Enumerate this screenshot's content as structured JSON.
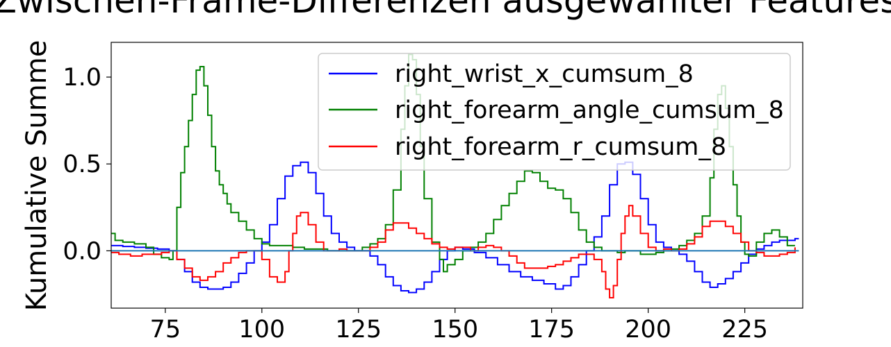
{
  "chart_data": {
    "type": "line",
    "drawstyle": "steps",
    "title": "Zwischen-Frame-Differenzen ausgewählter Features",
    "xlabel": "",
    "ylabel": "Kumulative Summe",
    "xlim": [
      61,
      240
    ],
    "ylim": [
      -0.33,
      1.2
    ],
    "x_ticks": [
      75,
      100,
      125,
      150,
      175,
      200,
      225
    ],
    "y_ticks": [
      0.0,
      0.5,
      1.0
    ],
    "x_tick_labels": [
      "75",
      "100",
      "125",
      "150",
      "175",
      "200",
      "225"
    ],
    "y_tick_labels": [
      "0.0",
      "0.5",
      "1.0"
    ],
    "grid": false,
    "legend_position": "top-right",
    "baseline": {
      "y": 0.0,
      "color": "#1f77b4"
    },
    "series": [
      {
        "name": "right_wrist_x_cumsum_8",
        "color": "#0000ff",
        "points": [
          [
            61,
            0.03
          ],
          [
            64,
            0.025
          ],
          [
            67,
            0.02
          ],
          [
            70,
            0.015
          ],
          [
            73,
            0.01
          ],
          [
            76,
            0.0
          ],
          [
            78,
            -0.05
          ],
          [
            80,
            -0.12
          ],
          [
            82,
            -0.18
          ],
          [
            84,
            -0.21
          ],
          [
            86,
            -0.22
          ],
          [
            88,
            -0.22
          ],
          [
            90,
            -0.21
          ],
          [
            92,
            -0.18
          ],
          [
            94,
            -0.13
          ],
          [
            96,
            -0.07
          ],
          [
            98,
            0.0
          ],
          [
            100,
            0.05
          ],
          [
            102,
            0.15
          ],
          [
            104,
            0.3
          ],
          [
            106,
            0.43
          ],
          [
            108,
            0.49
          ],
          [
            110,
            0.51
          ],
          [
            112,
            0.45
          ],
          [
            114,
            0.33
          ],
          [
            116,
            0.2
          ],
          [
            118,
            0.1
          ],
          [
            120,
            0.05
          ],
          [
            122,
            0.02
          ],
          [
            124,
            0.0
          ],
          [
            126,
            0.0
          ],
          [
            128,
            -0.03
          ],
          [
            130,
            -0.08
          ],
          [
            132,
            -0.15
          ],
          [
            134,
            -0.2
          ],
          [
            136,
            -0.23
          ],
          [
            138,
            -0.24
          ],
          [
            140,
            -0.22
          ],
          [
            142,
            -0.18
          ],
          [
            144,
            -0.12
          ],
          [
            146,
            -0.05
          ],
          [
            148,
            0.0
          ],
          [
            150,
            0.02
          ],
          [
            152,
            0.01
          ],
          [
            155,
            -0.01
          ],
          [
            158,
            -0.04
          ],
          [
            161,
            -0.08
          ],
          [
            164,
            -0.12
          ],
          [
            167,
            -0.15
          ],
          [
            170,
            -0.17
          ],
          [
            173,
            -0.19
          ],
          [
            176,
            -0.22
          ],
          [
            178,
            -0.2
          ],
          [
            180,
            -0.15
          ],
          [
            182,
            -0.08
          ],
          [
            184,
            0.0
          ],
          [
            186,
            0.08
          ],
          [
            188,
            0.2
          ],
          [
            190,
            0.38
          ],
          [
            192,
            0.5
          ],
          [
            194,
            0.51
          ],
          [
            196,
            0.44
          ],
          [
            198,
            0.3
          ],
          [
            200,
            0.15
          ],
          [
            202,
            0.05
          ],
          [
            204,
            0.02
          ],
          [
            206,
            0.0
          ],
          [
            208,
            -0.02
          ],
          [
            210,
            -0.06
          ],
          [
            212,
            -0.12
          ],
          [
            214,
            -0.18
          ],
          [
            216,
            -0.21
          ],
          [
            218,
            -0.19
          ],
          [
            220,
            -0.16
          ],
          [
            222,
            -0.12
          ],
          [
            224,
            -0.07
          ],
          [
            226,
            -0.02
          ],
          [
            228,
            0.01
          ],
          [
            230,
            0.03
          ],
          [
            232,
            0.05
          ],
          [
            234,
            0.06
          ],
          [
            236,
            0.06
          ],
          [
            238,
            0.07
          ],
          [
            239,
            0.07
          ]
        ]
      },
      {
        "name": "right_forearm_angle_cumsum_8",
        "color": "#008000",
        "points": [
          [
            61,
            0.1
          ],
          [
            62,
            0.06
          ],
          [
            64,
            0.05
          ],
          [
            67,
            0.04
          ],
          [
            70,
            0.02
          ],
          [
            72,
            -0.02
          ],
          [
            74,
            -0.04
          ],
          [
            76,
            -0.05
          ],
          [
            77,
            0.0
          ],
          [
            78,
            0.25
          ],
          [
            79,
            0.45
          ],
          [
            80,
            0.6
          ],
          [
            81,
            0.75
          ],
          [
            82,
            0.9
          ],
          [
            83,
            1.04
          ],
          [
            84,
            1.06
          ],
          [
            85,
            0.95
          ],
          [
            86,
            0.78
          ],
          [
            87,
            0.6
          ],
          [
            88,
            0.46
          ],
          [
            89,
            0.38
          ],
          [
            90,
            0.33
          ],
          [
            91,
            0.27
          ],
          [
            92,
            0.22
          ],
          [
            94,
            0.17
          ],
          [
            96,
            0.12
          ],
          [
            98,
            0.07
          ],
          [
            100,
            0.04
          ],
          [
            102,
            0.03
          ],
          [
            105,
            0.03
          ],
          [
            108,
            0.02
          ],
          [
            111,
            0.01
          ],
          [
            114,
            0.01
          ],
          [
            117,
            0.0
          ],
          [
            120,
            0.0
          ],
          [
            123,
            0.0
          ],
          [
            126,
            0.02
          ],
          [
            128,
            0.04
          ],
          [
            130,
            0.07
          ],
          [
            132,
            0.15
          ],
          [
            134,
            0.35
          ],
          [
            136,
            0.7
          ],
          [
            137,
            0.95
          ],
          [
            138,
            1.13
          ],
          [
            139,
            1.1
          ],
          [
            140,
            0.9
          ],
          [
            141,
            0.6
          ],
          [
            142,
            0.3
          ],
          [
            144,
            0.05
          ],
          [
            146,
            -0.05
          ],
          [
            147,
            -0.12
          ],
          [
            148,
            -0.08
          ],
          [
            150,
            -0.05
          ],
          [
            152,
            0.0
          ],
          [
            154,
            0.02
          ],
          [
            156,
            0.05
          ],
          [
            158,
            0.1
          ],
          [
            160,
            0.18
          ],
          [
            162,
            0.26
          ],
          [
            164,
            0.33
          ],
          [
            166,
            0.4
          ],
          [
            168,
            0.46
          ],
          [
            170,
            0.45
          ],
          [
            172,
            0.4
          ],
          [
            174,
            0.36
          ],
          [
            176,
            0.35
          ],
          [
            178,
            0.3
          ],
          [
            180,
            0.22
          ],
          [
            182,
            0.12
          ],
          [
            184,
            0.05
          ],
          [
            186,
            0.02
          ],
          [
            188,
            0.0
          ],
          [
            190,
            0.0
          ],
          [
            192,
            -0.01
          ],
          [
            194,
            0.0
          ],
          [
            196,
            0.0
          ],
          [
            198,
            -0.02
          ],
          [
            200,
            -0.02
          ],
          [
            202,
            -0.01
          ],
          [
            204,
            0.0
          ],
          [
            206,
            0.01
          ],
          [
            208,
            0.03
          ],
          [
            210,
            0.06
          ],
          [
            212,
            0.1
          ],
          [
            214,
            0.2
          ],
          [
            216,
            0.42
          ],
          [
            217,
            0.7
          ],
          [
            218,
            0.9
          ],
          [
            219,
            0.95
          ],
          [
            220,
            0.82
          ],
          [
            221,
            0.6
          ],
          [
            222,
            0.38
          ],
          [
            223,
            0.2
          ],
          [
            224,
            0.05
          ],
          [
            225,
            -0.02
          ],
          [
            226,
            -0.03
          ],
          [
            228,
            0.05
          ],
          [
            230,
            0.1
          ],
          [
            232,
            0.12
          ],
          [
            234,
            0.08
          ],
          [
            236,
            0.03
          ],
          [
            238,
            0.03
          ]
        ]
      },
      {
        "name": "right_forearm_r_cumsum_8",
        "color": "#ff0000",
        "points": [
          [
            61,
            -0.01
          ],
          [
            63,
            -0.02
          ],
          [
            66,
            -0.03
          ],
          [
            69,
            -0.02
          ],
          [
            72,
            -0.02
          ],
          [
            74,
            -0.01
          ],
          [
            76,
            0.0
          ],
          [
            78,
            -0.05
          ],
          [
            80,
            -0.1
          ],
          [
            82,
            -0.15
          ],
          [
            84,
            -0.17
          ],
          [
            86,
            -0.15
          ],
          [
            88,
            -0.12
          ],
          [
            90,
            -0.07
          ],
          [
            92,
            -0.04
          ],
          [
            94,
            -0.01
          ],
          [
            96,
            0.0
          ],
          [
            98,
            0.0
          ],
          [
            100,
            -0.05
          ],
          [
            102,
            -0.15
          ],
          [
            104,
            -0.18
          ],
          [
            106,
            -0.12
          ],
          [
            107,
            0.0
          ],
          [
            108,
            0.1
          ],
          [
            109,
            0.2
          ],
          [
            110,
            0.22
          ],
          [
            112,
            0.15
          ],
          [
            114,
            0.05
          ],
          [
            116,
            0.0
          ],
          [
            118,
            0.0
          ],
          [
            120,
            0.01
          ],
          [
            122,
            0.0
          ],
          [
            125,
            0.0
          ],
          [
            128,
            0.02
          ],
          [
            130,
            0.05
          ],
          [
            132,
            0.12
          ],
          [
            134,
            0.16
          ],
          [
            136,
            0.16
          ],
          [
            138,
            0.13
          ],
          [
            140,
            0.1
          ],
          [
            142,
            0.07
          ],
          [
            144,
            0.04
          ],
          [
            146,
            0.02
          ],
          [
            148,
            0.01
          ],
          [
            150,
            0.02
          ],
          [
            152,
            0.02
          ],
          [
            154,
            0.0
          ],
          [
            156,
            0.02
          ],
          [
            158,
            0.03
          ],
          [
            160,
            0.02
          ],
          [
            162,
            0.0
          ],
          [
            164,
            -0.03
          ],
          [
            166,
            -0.07
          ],
          [
            168,
            -0.1
          ],
          [
            170,
            -0.1
          ],
          [
            172,
            -0.1
          ],
          [
            174,
            -0.09
          ],
          [
            176,
            -0.08
          ],
          [
            178,
            -0.06
          ],
          [
            180,
            -0.04
          ],
          [
            182,
            -0.02
          ],
          [
            184,
            -0.02
          ],
          [
            186,
            -0.05
          ],
          [
            188,
            -0.12
          ],
          [
            189,
            -0.22
          ],
          [
            190,
            -0.27
          ],
          [
            191,
            -0.2
          ],
          [
            192,
            -0.05
          ],
          [
            193,
            0.1
          ],
          [
            194,
            0.2
          ],
          [
            195,
            0.26
          ],
          [
            196,
            0.2
          ],
          [
            198,
            0.1
          ],
          [
            200,
            0.02
          ],
          [
            202,
            0.0
          ],
          [
            204,
            0.01
          ],
          [
            206,
            0.0
          ],
          [
            208,
            0.01
          ],
          [
            210,
            0.04
          ],
          [
            212,
            0.08
          ],
          [
            214,
            0.14
          ],
          [
            216,
            0.17
          ],
          [
            218,
            0.17
          ],
          [
            220,
            0.14
          ],
          [
            222,
            0.1
          ],
          [
            224,
            0.05
          ],
          [
            226,
            0.0
          ],
          [
            228,
            -0.01
          ],
          [
            230,
            -0.03
          ],
          [
            232,
            -0.03
          ],
          [
            234,
            -0.02
          ],
          [
            236,
            -0.01
          ],
          [
            238,
            0.02
          ]
        ]
      }
    ]
  }
}
